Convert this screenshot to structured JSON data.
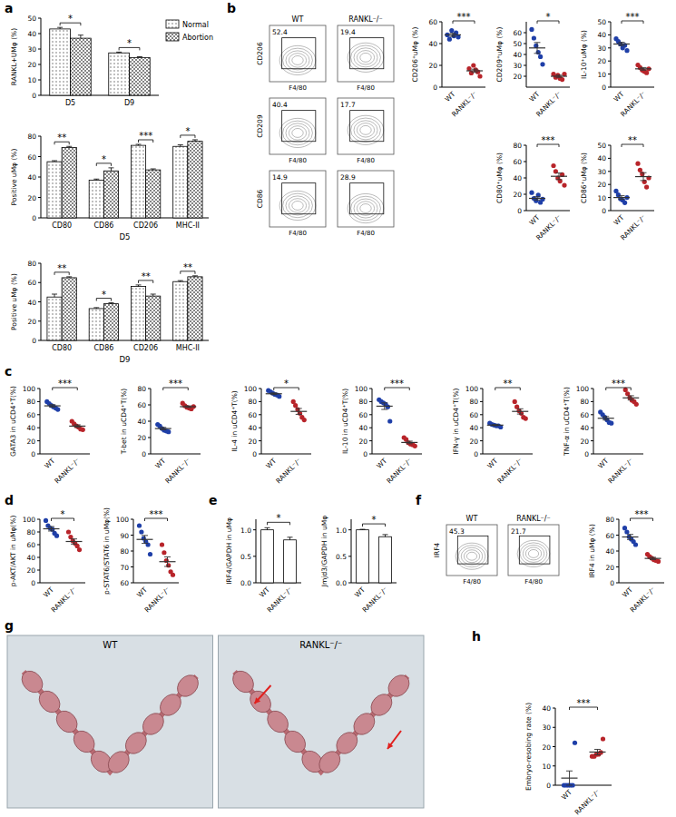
{
  "chart_data": [
    {
      "type": "bar",
      "panel": "a",
      "y_label": "RANKL+UMφ (%)",
      "categories": [
        "D5",
        "D9"
      ],
      "ylim": [
        0,
        50
      ],
      "yticks": [
        0,
        10,
        20,
        30,
        40,
        50
      ],
      "series": [
        {
          "name": "Normal",
          "color": "#ffffff",
          "values": [
            43,
            27.5
          ],
          "errors": [
            1,
            0.5
          ]
        },
        {
          "name": "Abortion",
          "color": "#ffffff",
          "values": [
            37,
            24.5
          ],
          "errors": [
            2,
            0.5
          ]
        }
      ],
      "annotations": [
        "*",
        "*"
      ]
    },
    {
      "type": "bar",
      "y_label": "Positive uMφ (%)",
      "x_label": "D5",
      "categories": [
        "CD80",
        "CD86",
        "CD206",
        "MHC-II"
      ],
      "ylim": [
        0,
        80
      ],
      "yticks": [
        0,
        20,
        40,
        60,
        80
      ],
      "series": [
        {
          "color": "#ffffff",
          "values": [
            55,
            37,
            71,
            70
          ],
          "errors": [
            1,
            1,
            1,
            1.5
          ]
        },
        {
          "color": "#ffffff",
          "values": [
            69,
            46,
            47,
            75
          ],
          "errors": [
            1,
            3,
            1,
            1.5
          ]
        }
      ],
      "annotations": [
        "**",
        "*",
        "***",
        "*"
      ]
    },
    {
      "type": "bar",
      "y_label": "Positive uMφ (%)",
      "x_label": "D9",
      "categories": [
        "CD80",
        "CD86",
        "CD206",
        "MHC-II"
      ],
      "ylim": [
        0,
        80
      ],
      "yticks": [
        0,
        20,
        40,
        60,
        80
      ],
      "series": [
        {
          "color": "#ffffff",
          "values": [
            45,
            33,
            56,
            61
          ],
          "errors": [
            3,
            1,
            1.5,
            1
          ]
        },
        {
          "color": "#ffffff",
          "values": [
            65,
            38,
            46,
            66
          ],
          "errors": [
            1,
            1,
            2,
            1
          ]
        }
      ],
      "annotations": [
        "**",
        "*",
        "**",
        "**"
      ]
    },
    {
      "type": "flow",
      "panel": "b",
      "columns": [
        "WT",
        "RANKL⁻/⁻"
      ],
      "x_label": "F4/80",
      "rows": [
        {
          "y_label": "CD206",
          "values": [
            52.4,
            19.4
          ]
        },
        {
          "y_label": "CD209",
          "values": [
            40.4,
            17.7
          ]
        },
        {
          "y_label": "CD86",
          "values": [
            14.9,
            28.9
          ]
        }
      ]
    },
    {
      "type": "dot",
      "y_label": "CD206⁺uMφ (%)",
      "categories": [
        "WT",
        "RANKL⁻/⁻"
      ],
      "ylim": [
        0,
        60
      ],
      "yticks": [
        0,
        20,
        40,
        60
      ],
      "annotation": "***",
      "groups": [
        {
          "color": "#1f3fa8",
          "values": [
            48,
            44,
            52,
            47,
            50,
            46
          ],
          "mean": 48,
          "error": 1.5
        },
        {
          "color": "#b8242a",
          "values": [
            17,
            13,
            20,
            16,
            14,
            10
          ],
          "mean": 15,
          "error": 1.5
        }
      ]
    },
    {
      "type": "dot",
      "y_label": "CD209⁺uMφ (%)",
      "categories": [
        "WT",
        "RANKL⁻/⁻"
      ],
      "ylim": [
        10,
        70
      ],
      "yticks": [
        20,
        30,
        40,
        50,
        60
      ],
      "annotation": "*",
      "groups": [
        {
          "color": "#1f3fa8",
          "values": [
            63,
            55,
            48,
            42,
            38,
            31
          ],
          "mean": 46,
          "error": 5
        },
        {
          "color": "#b8242a",
          "values": [
            22,
            19,
            21,
            18,
            17,
            22
          ],
          "mean": 20,
          "error": 1
        }
      ]
    },
    {
      "type": "dot",
      "y_label": "IL-10⁺uMφ (%)",
      "categories": [
        "WT",
        "RANKL⁻/⁻"
      ],
      "ylim": [
        0,
        50
      ],
      "yticks": [
        0,
        10,
        20,
        30,
        40,
        50
      ],
      "annotation": "***",
      "groups": [
        {
          "color": "#1f3fa8",
          "values": [
            37,
            35,
            33,
            30,
            32,
            28
          ],
          "mean": 33,
          "error": 1.3
        },
        {
          "color": "#b8242a",
          "values": [
            17,
            15,
            13,
            12,
            11,
            14
          ],
          "mean": 14,
          "error": 1
        }
      ]
    },
    {
      "type": "dot",
      "y_label": "CD80⁺uMφ (%)",
      "categories": [
        "WT",
        "RANKL⁻/⁻"
      ],
      "ylim": [
        0,
        80
      ],
      "yticks": [
        0,
        20,
        40,
        60,
        80
      ],
      "annotation": "***",
      "groups": [
        {
          "color": "#1f3fa8",
          "values": [
            22,
            15,
            12,
            19,
            10,
            14
          ],
          "mean": 15,
          "error": 2
        },
        {
          "color": "#b8242a",
          "values": [
            55,
            48,
            40,
            36,
            44,
            31
          ],
          "mean": 42,
          "error": 4
        }
      ]
    },
    {
      "type": "dot",
      "y_label": "CD86⁺uMφ (%)",
      "categories": [
        "WT",
        "RANKL⁻/⁻"
      ],
      "ylim": [
        0,
        50
      ],
      "yticks": [
        0,
        10,
        20,
        30,
        40,
        50
      ],
      "annotation": "**",
      "groups": [
        {
          "color": "#1f3fa8",
          "values": [
            15,
            12,
            9,
            8,
            6,
            10
          ],
          "mean": 10,
          "error": 1.4
        },
        {
          "color": "#b8242a",
          "values": [
            36,
            31,
            28,
            22,
            18,
            25
          ],
          "mean": 26,
          "error": 3
        }
      ]
    },
    {
      "type": "dot",
      "panel": "c",
      "y_label": "GATA3 in uCD4⁺T(%)",
      "categories": [
        "WT",
        "RANKL⁻/⁻"
      ],
      "ylim": [
        0,
        100
      ],
      "yticks": [
        0,
        20,
        40,
        60,
        80,
        100
      ],
      "annotation": "***",
      "groups": [
        {
          "color": "#1f3fa8",
          "values": [
            80,
            77,
            74,
            72,
            70,
            68
          ],
          "mean": 73.5,
          "error": 1.8
        },
        {
          "color": "#b8242a",
          "values": [
            50,
            46,
            43,
            41,
            38,
            37
          ],
          "mean": 42.5,
          "error": 2
        }
      ]
    },
    {
      "type": "dot",
      "y_label": "T-bet in uCD4⁺T(%)",
      "categories": [
        "WT",
        "RANKL⁻/⁻"
      ],
      "ylim": [
        0,
        80
      ],
      "yticks": [
        0,
        20,
        40,
        60,
        80
      ],
      "annotation": "***",
      "groups": [
        {
          "color": "#1f3fa8",
          "values": [
            36,
            34,
            31,
            29,
            28,
            27
          ],
          "mean": 31,
          "error": 1.4
        },
        {
          "color": "#b8242a",
          "values": [
            62,
            59,
            57,
            56,
            55,
            58
          ],
          "mean": 57.8,
          "error": 1
        }
      ]
    },
    {
      "type": "dot",
      "y_label": "IL-4 in uCD4⁺T(%)",
      "categories": [
        "WT",
        "RANKL⁻/⁻"
      ],
      "ylim": [
        0,
        100
      ],
      "yticks": [
        0,
        20,
        40,
        60,
        80,
        100
      ],
      "annotation": "*",
      "groups": [
        {
          "color": "#1f3fa8",
          "values": [
            97,
            95,
            93,
            91,
            90,
            88
          ],
          "mean": 92,
          "error": 1.3
        },
        {
          "color": "#b8242a",
          "values": [
            80,
            74,
            68,
            62,
            56,
            52
          ],
          "mean": 65,
          "error": 4.5
        }
      ]
    },
    {
      "type": "dot",
      "y_label": "IL-10 in uCD4⁺T(%)",
      "categories": [
        "WT",
        "RANKL⁻/⁻"
      ],
      "ylim": [
        0,
        100
      ],
      "yticks": [
        0,
        20,
        40,
        60,
        80,
        100
      ],
      "annotation": "***",
      "groups": [
        {
          "color": "#1f3fa8",
          "values": [
            83,
            80,
            78,
            76,
            72,
            50
          ],
          "mean": 73,
          "error": 5
        },
        {
          "color": "#b8242a",
          "values": [
            25,
            22,
            17,
            15,
            14,
            12
          ],
          "mean": 17.5,
          "error": 2
        }
      ]
    },
    {
      "type": "dot",
      "y_label": "IFN-γ in uCD4⁺T(%)",
      "categories": [
        "WT",
        "RANKL⁻/⁻"
      ],
      "ylim": [
        0,
        100
      ],
      "yticks": [
        0,
        20,
        40,
        60,
        80,
        100
      ],
      "annotation": "**",
      "groups": [
        {
          "color": "#1f3fa8",
          "values": [
            47,
            45,
            44,
            43,
            43,
            41
          ],
          "mean": 44,
          "error": 0.8
        },
        {
          "color": "#b8242a",
          "values": [
            80,
            72,
            66,
            62,
            56,
            54
          ],
          "mean": 65,
          "error": 4
        }
      ]
    },
    {
      "type": "dot",
      "y_label": "TNF-α in uCD4⁺T(%)",
      "categories": [
        "WT",
        "RANKL⁻/⁻"
      ],
      "ylim": [
        0,
        100
      ],
      "yticks": [
        0,
        20,
        40,
        60,
        80,
        100
      ],
      "annotation": "***",
      "groups": [
        {
          "color": "#1f3fa8",
          "values": [
            64,
            60,
            56,
            52,
            48,
            47
          ],
          "mean": 54.5,
          "error": 2.7
        },
        {
          "color": "#b8242a",
          "values": [
            98,
            92,
            86,
            82,
            80,
            76
          ],
          "mean": 85.7,
          "error": 3.3
        }
      ]
    },
    {
      "type": "dot",
      "panel": "d",
      "y_label": "p-AKT/AKT in uMφ(%)",
      "categories": [
        "WT",
        "RANKL⁻/⁻"
      ],
      "ylim": [
        0,
        100
      ],
      "yticks": [
        0,
        20,
        40,
        60,
        80,
        100
      ],
      "annotation": "*",
      "groups": [
        {
          "color": "#1f3fa8",
          "values": [
            98,
            90,
            86,
            84,
            78,
            74
          ],
          "mean": 85,
          "error": 3.5
        },
        {
          "color": "#b8242a",
          "values": [
            80,
            72,
            66,
            62,
            58,
            52
          ],
          "mean": 65,
          "error": 4
        }
      ]
    },
    {
      "type": "dot",
      "y_label": "p-STAT6/STAT6 in uMφ(%)",
      "categories": [
        "WT",
        "RANKL⁻/⁻"
      ],
      "ylim": [
        60,
        100
      ],
      "yticks": [
        60,
        70,
        80,
        90,
        100
      ],
      "annotation": "***",
      "groups": [
        {
          "color": "#1f3fa8",
          "values": [
            96,
            92,
            88,
            86,
            84,
            78
          ],
          "mean": 87.3,
          "error": 2.5
        },
        {
          "color": "#b8242a",
          "values": [
            84,
            79,
            74,
            71,
            67,
            65
          ],
          "mean": 73.3,
          "error": 3
        }
      ]
    },
    {
      "type": "bar",
      "panel": "e",
      "y_label": "IRF4/GAPDH in uMφ",
      "categories": [
        "WT",
        "RANKL⁻/⁻"
      ],
      "ylim": [
        0,
        1.2
      ],
      "yticks": [
        {
          "value": 0,
          "label": "0.0"
        },
        0.5,
        {
          "value": 1,
          "label": "1.0"
        }
      ],
      "series": [
        {
          "color": "#ffffff",
          "values": [
            1.0,
            0.81
          ],
          "errors": [
            0.04,
            0.05
          ]
        }
      ],
      "annotation": "*"
    },
    {
      "type": "bar",
      "y_label": "Jmjd3/GAPDH in uMφ",
      "categories": [
        "WT",
        "RANKL⁻/⁻"
      ],
      "ylim": [
        0,
        1.2
      ],
      "yticks": [
        {
          "value": 0,
          "label": "0.0"
        },
        0.5,
        {
          "value": 1,
          "label": "1.0"
        }
      ],
      "series": [
        {
          "color": "#ffffff",
          "values": [
            1.0,
            0.87
          ],
          "errors": [
            0.01,
            0.04
          ]
        }
      ],
      "annotation": "*"
    },
    {
      "type": "flow",
      "panel": "f",
      "columns": [
        "WT",
        "RANKL⁻/⁻"
      ],
      "x_label": "F4/80",
      "rows": [
        {
          "y_label": "IRF4",
          "values": [
            45.3,
            21.7
          ]
        }
      ]
    },
    {
      "type": "dot",
      "y_label": "IRF4 in uMφ (%)",
      "categories": [
        "WT",
        "RANKL⁻/⁻"
      ],
      "ylim": [
        0,
        80
      ],
      "yticks": [
        0,
        20,
        40,
        60,
        80
      ],
      "annotation": "***",
      "groups": [
        {
          "color": "#1f3fa8",
          "values": [
            69,
            64,
            58,
            55,
            52,
            48
          ],
          "mean": 57.7,
          "error": 3.2
        },
        {
          "color": "#b8242a",
          "values": [
            36,
            33,
            31,
            29,
            28,
            27
          ],
          "mean": 30.7,
          "error": 1.4
        }
      ]
    },
    {
      "type": "image",
      "panel": "g",
      "labels": [
        "WT",
        "RANKL⁻/⁻"
      ]
    },
    {
      "type": "dot",
      "panel": "h",
      "y_label": "Embryo-resobing rate (%)",
      "categories": [
        "WT",
        "RANKL⁻/⁻"
      ],
      "ylim": [
        0,
        40
      ],
      "yticks": [
        0,
        10,
        20,
        30,
        40
      ],
      "annotation": "***",
      "groups": [
        {
          "color": "#1f3fa8",
          "values": [
            0,
            0,
            0,
            0,
            0,
            22
          ],
          "mean": 3.7,
          "error": 3.7
        },
        {
          "color": "#b8242a",
          "values": [
            15,
            15,
            16,
            16,
            17,
            24
          ],
          "mean": 17.2,
          "error": 1.4
        }
      ]
    }
  ]
}
